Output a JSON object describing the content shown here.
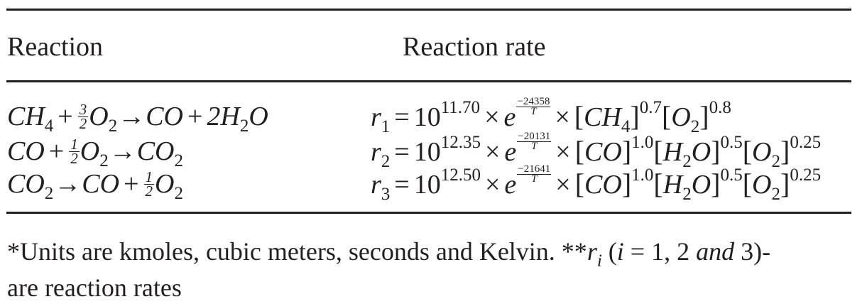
{
  "table": {
    "header": {
      "reaction": "Reaction",
      "rate": "Reaction rate"
    },
    "rows": [
      {
        "reaction": {
          "r1": "CH",
          "r1_sub": "4",
          "plus1": "+",
          "coef_num": "3",
          "coef_den": "2",
          "r2": "O",
          "r2_sub": "2",
          "arrow": "→",
          "p1": "CO",
          "plus2": "+",
          "p2": "2H",
          "p2_sub": "2",
          "p2_end": "O"
        },
        "rate": {
          "r": "r",
          "r_sub": "1",
          "eq": "=",
          "base": "10",
          "pow": "11.70",
          "times1": "×",
          "e": "e",
          "ea_num": "−24358",
          "ea_den": "T",
          "times2": "×",
          "c1": "CH",
          "c1_sub": "4",
          "c1_pow": "0.7",
          "c2": "O",
          "c2_sub": "2",
          "c2_pow": "0.8"
        }
      },
      {
        "reaction": {
          "r1": "CO",
          "plus1": "+",
          "coef_num": "1",
          "coef_den": "2",
          "r2": "O",
          "r2_sub": "2",
          "arrow": "→",
          "p1": "CO",
          "p1_sub": "2"
        },
        "rate": {
          "r": "r",
          "r_sub": "2",
          "eq": "=",
          "base": "10",
          "pow": "12.35",
          "times1": "×",
          "e": "e",
          "ea_num": "−20131",
          "ea_den": "T",
          "times2": "×",
          "c1": "CO",
          "c1_pow": "1.0",
          "c2": "H",
          "c2_sub": "2",
          "c2_end": "O",
          "c2_pow": "0.5",
          "c3": "O",
          "c3_sub": "2",
          "c3_pow": "0.25"
        }
      },
      {
        "reaction": {
          "r1": "CO",
          "r1_sub": "2",
          "arrow": "→",
          "p1": "CO",
          "plus1": "+",
          "coef_num": "1",
          "coef_den": "2",
          "p2": "O",
          "p2_sub": "2"
        },
        "rate": {
          "r": "r",
          "r_sub": "3",
          "eq": "=",
          "base": "10",
          "pow": "12.50",
          "times1": "×",
          "e": "e",
          "ea_num": "−21641",
          "ea_den": "T",
          "times2": "×",
          "c1": "CO",
          "c1_pow": "1.0",
          "c2": "H",
          "c2_sub": "2",
          "c2_end": "O",
          "c2_pow": "0.5",
          "c3": "O",
          "c3_sub": "2",
          "c3_pow": "0.25"
        }
      }
    ]
  },
  "footnote": {
    "part1": "*Units are kmoles, cubic meters, seconds and Kelvin. **",
    "r": "r",
    "r_sub": "i",
    "paren": " (",
    "i": "i",
    "eq": " = 1, 2 ",
    "and": "and",
    "end": " 3)-",
    "line2": "are reaction rates"
  }
}
